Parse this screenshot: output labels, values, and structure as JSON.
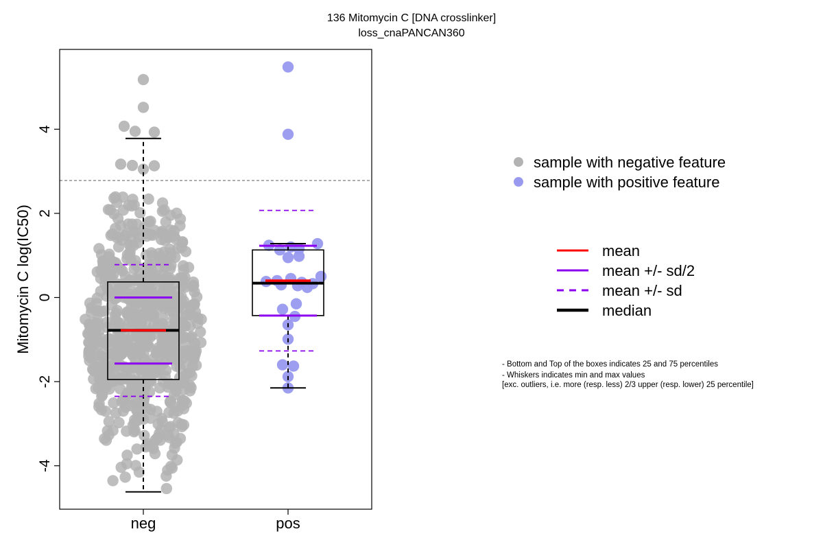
{
  "chart_data": {
    "type": "boxplot",
    "title": "136 Mitomycin C [DNA crosslinker]",
    "subtitle": "loss_cnaPANCAN360",
    "ylabel": "Mitomycin C log(IC50)",
    "xlabel": "",
    "categories": [
      "neg",
      "pos"
    ],
    "ylim": [
      -5,
      5.9
    ],
    "yticks": [
      -4,
      -2,
      0,
      2,
      4
    ],
    "ytick_labels": [
      "-4",
      "-2",
      "0",
      "2",
      "4"
    ],
    "threshold_line": 2.78,
    "groups": [
      {
        "name": "neg",
        "color": "#b3b3b3",
        "q1": -1.95,
        "median": -0.78,
        "q3": 0.37,
        "whisker_low": -4.62,
        "whisker_high": 3.78,
        "mean": -0.78,
        "mean_minus_half_sd": -1.57,
        "mean_plus_half_sd": 0.0,
        "mean_minus_sd": -2.35,
        "mean_plus_sd": 0.78,
        "highlighted_points": [
          5.18,
          4.52,
          4.07,
          3.95,
          3.93,
          3.17,
          3.14,
          3.13,
          3.05
        ],
        "n_points": 700
      },
      {
        "name": "pos",
        "color": "#9999f0",
        "q1": -0.43,
        "median": 0.34,
        "q3": 1.13,
        "whisker_low": -2.15,
        "whisker_high": 1.28,
        "mean": 0.4,
        "mean_minus_half_sd": -0.43,
        "mean_plus_half_sd": 1.23,
        "mean_minus_sd": -1.27,
        "mean_plus_sd": 2.07,
        "points": [
          5.48,
          3.88,
          1.28,
          1.24,
          1.2,
          1.16,
          1.13,
          0.98,
          0.95,
          0.5,
          0.45,
          0.4,
          0.38,
          0.36,
          0.33,
          0.3,
          0.28,
          0.24,
          -0.15,
          -0.28,
          -0.45,
          -0.65,
          -0.99,
          -1.6,
          -1.63,
          -1.88,
          -2.15
        ]
      }
    ],
    "legend_points": [
      {
        "label": "sample with negative feature",
        "color": "#b3b3b3"
      },
      {
        "label": "sample with positive feature",
        "color": "#9999f0"
      }
    ],
    "legend_lines": [
      {
        "label": "mean",
        "color": "#ff0000",
        "style": "solid"
      },
      {
        "label": "mean +/- sd/2",
        "color": "#8b00ee",
        "style": "solid"
      },
      {
        "label": "mean +/- sd",
        "color": "#8b00ee",
        "style": "dashed"
      },
      {
        "label": "median",
        "color": "#000000",
        "style": "solid-thick"
      }
    ]
  },
  "notes": [
    "- Bottom and Top of the boxes indicates 25 and 75 percentiles",
    "- Whiskers indicates min and max values",
    "[exc. outliers, i.e. more (resp. less) 2/3 upper (resp. lower) 25 percentile]"
  ]
}
